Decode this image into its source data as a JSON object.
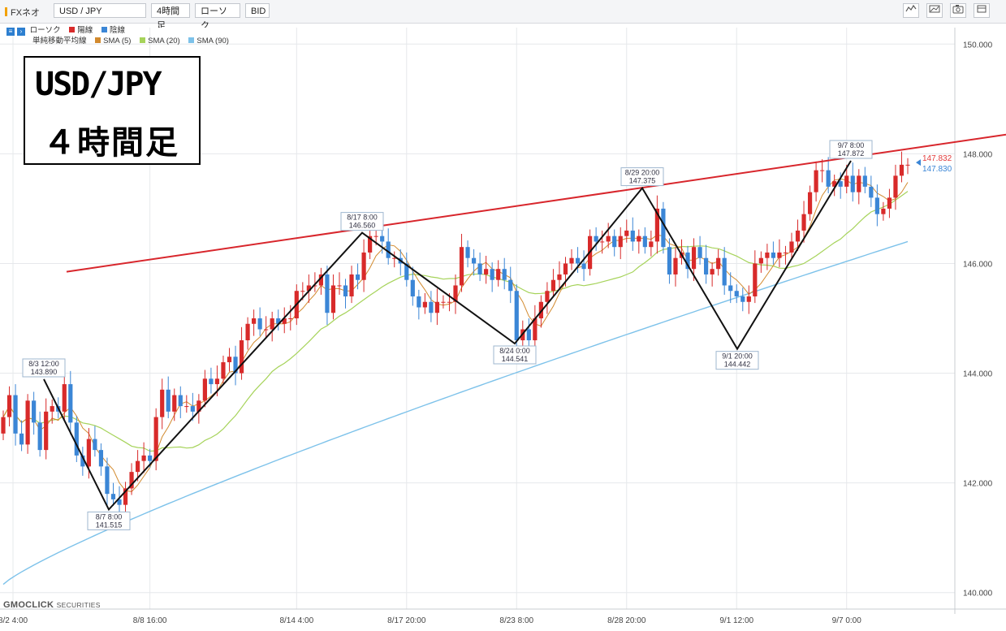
{
  "toolbar": {
    "app_name": "FXネオ",
    "symbol": "USD / JPY",
    "timeframe": "4時間足",
    "chart_type": "ローソク",
    "price_type": "BID",
    "icons": [
      "line-chart-icon",
      "area-chart-icon",
      "camera-icon",
      "window-icon"
    ]
  },
  "legend": {
    "candle_label": "ローソク",
    "up_label": "陽線",
    "down_label": "陰線",
    "ma_label": "単純移動平均線",
    "sma5": "SMA (5)",
    "sma20": "SMA (20)",
    "sma90": "SMA (90)",
    "colors": {
      "up": "#d82a2a",
      "down": "#3b86d6",
      "sma5": "#d28a2e",
      "sma20": "#a6d35a",
      "sma90": "#7dc2ea"
    }
  },
  "title_box": {
    "line1": "USD/JPY",
    "line2": "４時間足"
  },
  "brand": {
    "name": "GMOCLICK",
    "suffix": "SECURITIES"
  },
  "chart_data": {
    "type": "candlestick",
    "symbol": "USD/JPY",
    "timeframe": "4H",
    "y_range": [
      139.7,
      150.3
    ],
    "y_ticks": [
      "150.000",
      "148.000",
      "146.000",
      "144.000",
      "142.000",
      "140.000"
    ],
    "x_ticks": [
      "8/2 4:00",
      "8/8 16:00",
      "8/14 4:00",
      "8/17 20:00",
      "8/23 8:00",
      "8/28 20:00",
      "9/1 12:00",
      "9/7 0:00"
    ],
    "last_price": {
      "ask": "147.832",
      "bid": "147.830"
    },
    "annotations": [
      {
        "time": "8/3 12:00",
        "value": "143.890"
      },
      {
        "time": "8/7 8:00",
        "value": "141.515"
      },
      {
        "time": "8/17 8:00",
        "value": "146.560"
      },
      {
        "time": "8/24 0:00",
        "value": "144.541"
      },
      {
        "time": "8/29 20:00",
        "value": "147.375"
      },
      {
        "time": "9/1 20:00",
        "value": "144.442"
      },
      {
        "time": "9/7 8:00",
        "value": "147.872"
      }
    ],
    "zigzag_values": [
      143.89,
      141.515,
      146.56,
      144.541,
      147.375,
      144.442,
      147.872
    ],
    "resistance_line": {
      "start_value": 145.85,
      "end_value": 148.35
    },
    "closes": [
      143.2,
      143.6,
      142.9,
      142.7,
      143.5,
      143.1,
      142.6,
      143.3,
      143.4,
      143.3,
      143.8,
      143.1,
      142.5,
      142.3,
      142.8,
      142.6,
      142.3,
      141.8,
      141.7,
      141.6,
      141.9,
      142.2,
      142.4,
      142.5,
      142.4,
      143.2,
      143.7,
      143.3,
      143.6,
      143.4,
      143.4,
      143.3,
      143.5,
      143.9,
      143.8,
      143.9,
      144.2,
      144.3,
      144.0,
      144.6,
      144.9,
      145.0,
      144.8,
      144.8,
      145.0,
      144.9,
      145.0,
      145.0,
      145.5,
      145.5,
      145.6,
      145.6,
      145.8,
      145.1,
      145.6,
      145.6,
      145.4,
      145.8,
      145.7,
      146.2,
      146.5,
      146.5,
      146.4,
      146.1,
      146.1,
      146.0,
      145.7,
      145.4,
      145.2,
      145.3,
      145.1,
      145.3,
      145.3,
      145.3,
      145.6,
      146.3,
      146.1,
      146.0,
      145.8,
      145.9,
      145.7,
      145.9,
      145.7,
      145.5,
      144.6,
      144.8,
      144.6,
      145.0,
      145.3,
      145.5,
      145.7,
      145.8,
      146.0,
      146.1,
      146.0,
      145.9,
      146.5,
      146.4,
      146.4,
      146.5,
      146.3,
      146.5,
      146.6,
      146.4,
      146.5,
      146.3,
      146.4,
      147.0,
      146.3,
      145.8,
      146.1,
      146.2,
      145.9,
      146.3,
      146.1,
      145.8,
      145.9,
      146.1,
      145.6,
      145.5,
      145.4,
      145.3,
      145.4,
      146.0,
      146.1,
      146.2,
      146.1,
      146.2,
      146.2,
      146.4,
      146.6,
      146.9,
      147.3,
      147.7,
      147.7,
      147.4,
      147.5,
      147.4,
      147.6,
      147.3,
      147.6,
      147.4,
      147.2,
      146.9,
      147.0,
      147.2,
      147.6,
      147.8,
      147.8
    ]
  }
}
